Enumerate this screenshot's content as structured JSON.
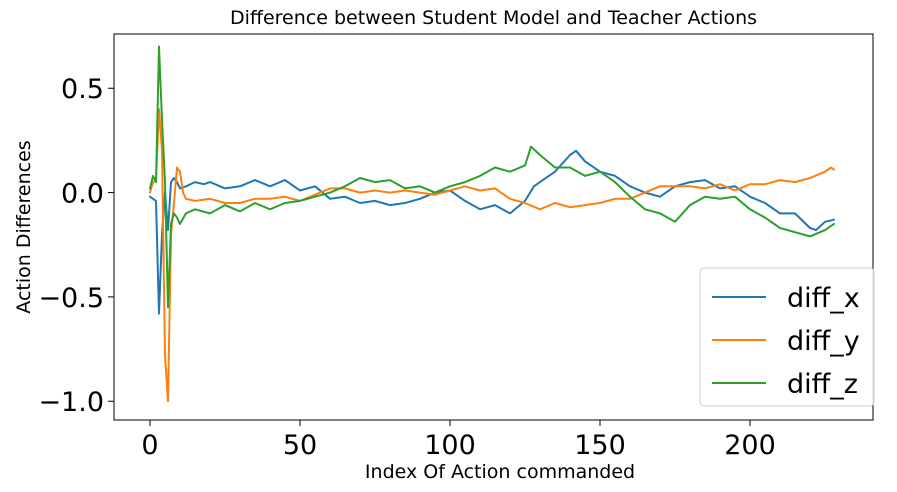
{
  "chart_data": {
    "type": "line",
    "title": "Difference between Student Model and Teacher Actions",
    "xlabel": "Index Of Action commanded",
    "ylabel": "Action Differences",
    "xlim": [
      -12,
      241
    ],
    "ylim": [
      -1.09,
      0.76
    ],
    "xticks": [
      0,
      50,
      100,
      150,
      200
    ],
    "xtick_labels": [
      "0",
      "50",
      "100",
      "150",
      "200"
    ],
    "yticks": [
      0.5,
      0.0,
      -0.5,
      -1.0
    ],
    "ytick_labels": [
      "0.5",
      "0.0",
      "−0.5",
      "−1.0"
    ],
    "grid": false,
    "legend_position": "bottom-right",
    "series": [
      {
        "name": "diff_x",
        "color": "#1f77b4",
        "x": [
          0,
          1,
          2,
          3,
          4,
          5,
          6,
          7,
          8,
          9,
          10,
          12,
          15,
          18,
          20,
          25,
          30,
          35,
          40,
          45,
          50,
          55,
          60,
          65,
          70,
          75,
          80,
          85,
          90,
          95,
          100,
          105,
          110,
          115,
          120,
          125,
          128,
          130,
          135,
          140,
          142,
          145,
          150,
          155,
          160,
          165,
          170,
          175,
          180,
          185,
          190,
          195,
          200,
          205,
          210,
          215,
          220,
          222,
          225,
          228
        ],
        "y": [
          -0.02,
          -0.03,
          -0.04,
          -0.58,
          -0.2,
          0.0,
          -0.18,
          0.05,
          0.07,
          0.05,
          0.02,
          0.03,
          0.05,
          0.04,
          0.05,
          0.02,
          0.03,
          0.06,
          0.03,
          0.06,
          0.01,
          0.03,
          -0.03,
          -0.02,
          -0.05,
          -0.04,
          -0.06,
          -0.05,
          -0.03,
          0.0,
          0.01,
          -0.04,
          -0.08,
          -0.06,
          -0.1,
          -0.04,
          0.03,
          0.05,
          0.1,
          0.18,
          0.2,
          0.15,
          0.1,
          0.08,
          0.03,
          0.0,
          -0.02,
          0.03,
          0.05,
          0.06,
          0.02,
          0.03,
          -0.02,
          -0.05,
          -0.1,
          -0.1,
          -0.17,
          -0.18,
          -0.14,
          -0.13
        ]
      },
      {
        "name": "diff_y",
        "color": "#ff7f0e",
        "x": [
          0,
          1,
          2,
          3,
          4,
          5,
          6,
          7,
          8,
          9,
          10,
          11,
          12,
          15,
          20,
          25,
          30,
          35,
          40,
          45,
          50,
          55,
          60,
          65,
          70,
          75,
          80,
          85,
          90,
          95,
          100,
          105,
          110,
          115,
          120,
          125,
          130,
          135,
          140,
          145,
          150,
          155,
          160,
          165,
          170,
          175,
          180,
          185,
          190,
          195,
          200,
          205,
          210,
          215,
          220,
          225,
          227,
          228
        ],
        "y": [
          0.0,
          0.05,
          0.06,
          0.4,
          0.2,
          -0.78,
          -1.0,
          -0.2,
          -0.05,
          0.12,
          0.1,
          0.0,
          -0.03,
          -0.04,
          -0.03,
          -0.05,
          -0.05,
          -0.03,
          -0.03,
          -0.02,
          -0.04,
          -0.01,
          0.02,
          0.02,
          0.0,
          0.01,
          0.0,
          0.01,
          0.0,
          -0.01,
          0.01,
          0.03,
          0.01,
          0.02,
          -0.03,
          -0.05,
          -0.08,
          -0.05,
          -0.07,
          -0.06,
          -0.05,
          -0.03,
          -0.03,
          0.0,
          0.03,
          0.03,
          0.03,
          0.02,
          0.04,
          0.01,
          0.04,
          0.04,
          0.06,
          0.05,
          0.07,
          0.1,
          0.12,
          0.11
        ]
      },
      {
        "name": "diff_z",
        "color": "#2ca02c",
        "x": [
          0,
          1,
          2,
          3,
          4,
          5,
          6,
          7,
          8,
          9,
          10,
          12,
          15,
          20,
          25,
          30,
          35,
          40,
          45,
          50,
          55,
          60,
          65,
          70,
          75,
          80,
          85,
          90,
          95,
          100,
          105,
          110,
          115,
          120,
          125,
          127,
          130,
          135,
          140,
          145,
          150,
          155,
          160,
          165,
          170,
          175,
          180,
          185,
          190,
          195,
          200,
          205,
          210,
          215,
          220,
          225,
          228
        ],
        "y": [
          0.02,
          0.08,
          0.05,
          0.7,
          0.35,
          0.05,
          -0.55,
          -0.15,
          -0.1,
          -0.12,
          -0.15,
          -0.1,
          -0.08,
          -0.1,
          -0.06,
          -0.09,
          -0.05,
          -0.08,
          -0.05,
          -0.04,
          -0.02,
          0.0,
          0.03,
          0.07,
          0.05,
          0.06,
          0.02,
          0.03,
          0.0,
          0.03,
          0.05,
          0.08,
          0.12,
          0.1,
          0.13,
          0.22,
          0.18,
          0.12,
          0.12,
          0.08,
          0.1,
          0.05,
          -0.02,
          -0.08,
          -0.1,
          -0.14,
          -0.06,
          -0.02,
          -0.03,
          -0.02,
          -0.08,
          -0.12,
          -0.17,
          -0.19,
          -0.21,
          -0.18,
          -0.15
        ]
      }
    ]
  }
}
